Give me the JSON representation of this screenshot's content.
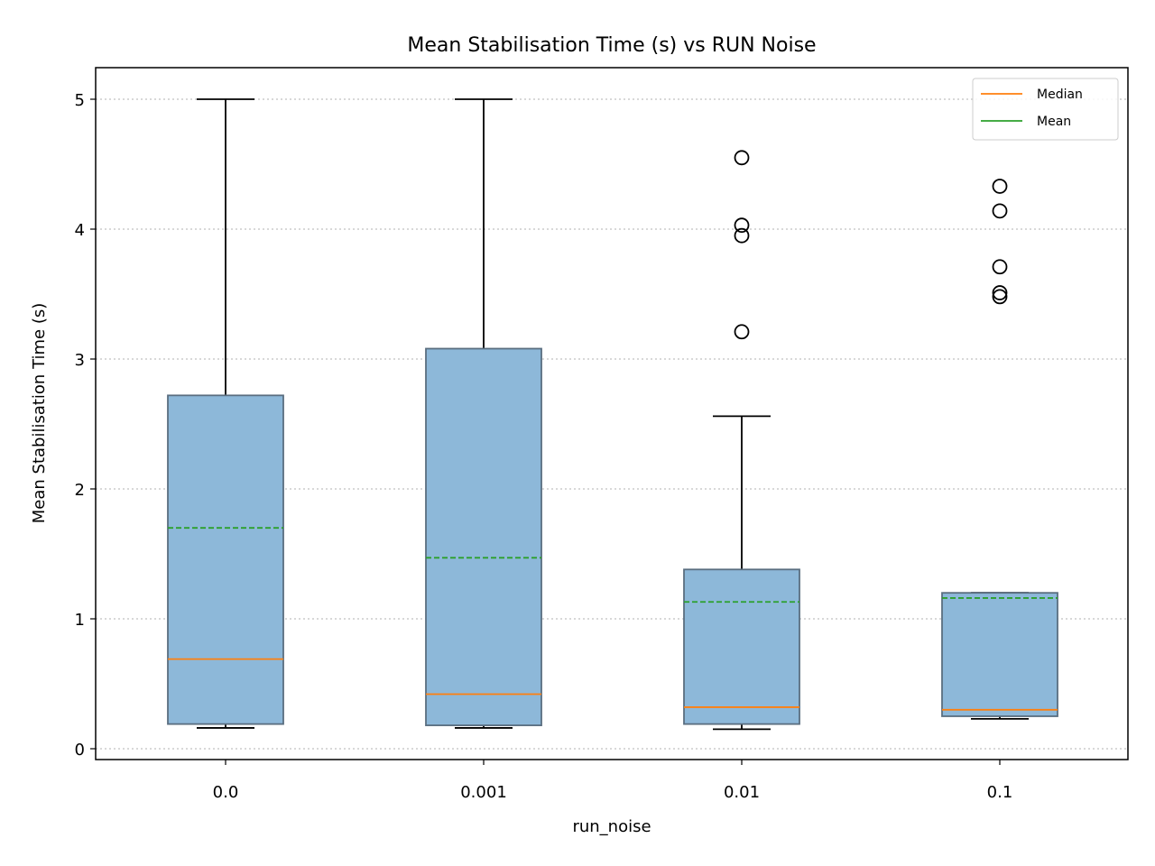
{
  "chart_data": {
    "type": "box",
    "title": "Mean Stabilisation Time (s) vs RUN Noise",
    "xlabel": "run_noise",
    "ylabel": "Mean Stabilisation Time (s)",
    "categories": [
      "0.0",
      "0.001",
      "0.01",
      "0.1"
    ],
    "yticks": [
      "0",
      "1",
      "2",
      "3",
      "4",
      "5"
    ],
    "ylim": [
      -0.09,
      5.25
    ],
    "grid": "y-dotted",
    "legend": {
      "position": "top-right",
      "entries": [
        {
          "label": "Median",
          "color": "#ff7f0e",
          "style": "solid"
        },
        {
          "label": "Mean",
          "color": "#2ca02c",
          "style": "solid"
        }
      ]
    },
    "boxes": [
      {
        "category": "0.0",
        "whisker_low": 0.16,
        "q1": 0.19,
        "median": 0.69,
        "q3": 2.72,
        "whisker_high": 5.0,
        "mean": 1.7,
        "outliers": []
      },
      {
        "category": "0.001",
        "whisker_low": 0.16,
        "q1": 0.18,
        "median": 0.42,
        "q3": 3.08,
        "whisker_high": 5.0,
        "mean": 1.47,
        "outliers": []
      },
      {
        "category": "0.01",
        "whisker_low": 0.15,
        "q1": 0.19,
        "median": 0.32,
        "q3": 1.38,
        "whisker_high": 2.56,
        "mean": 1.13,
        "outliers": [
          3.21,
          3.95,
          4.03,
          4.55
        ]
      },
      {
        "category": "0.1",
        "whisker_low": 0.23,
        "q1": 0.25,
        "median": 0.3,
        "q3": 1.2,
        "whisker_high": 1.2,
        "mean": 1.16,
        "outliers": [
          3.48,
          3.51,
          3.71,
          4.14,
          4.33
        ]
      }
    ],
    "colors": {
      "box_fill": "#8db8d9",
      "box_edge": "#5a6e80",
      "median": "#ff7f0e",
      "mean": "#2ca02c",
      "whisker": "#000000",
      "grid": "#b0b0b0"
    }
  }
}
